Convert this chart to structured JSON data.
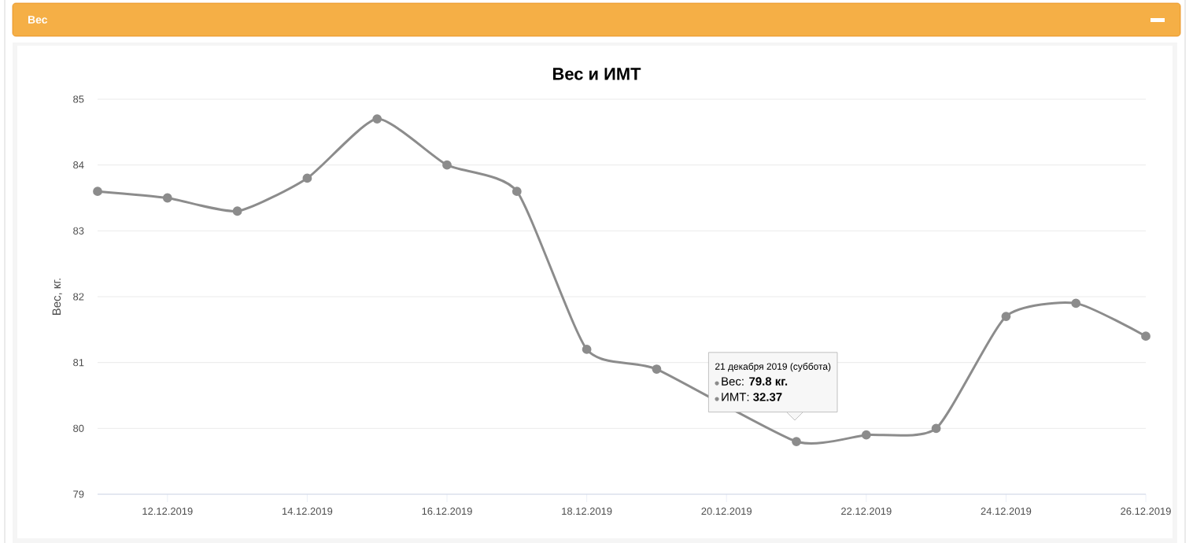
{
  "chart_data": {
    "type": "line",
    "title": "Вес",
    "subtitle": "Вес и ИМТ",
    "ylabel": "Вес, кг.",
    "annotations": [
      "21 декабря 2019 (суббота)",
      "Вес: **79.8 кг.**",
      "ИМТ: **32.37**"
    ],
    "x": [
      "2019-12-11",
      "2019-12-12",
      "2019-12-13",
      "2019-12-14",
      "2019-12-15",
      "2019-12-16",
      "2019-12-17",
      "2019-12-18",
      "2019-12-19",
      "2019-12-20",
      "2019-12-21",
      "2019-12-22",
      "2019-12-23",
      "2019-12-24",
      "2019-12-25",
      "2019-12-26"
    ],
    "series": [
      {
        "color": "#8c8c8c",
        "values": [
          83.6,
          83.5,
          83.3,
          83.8,
          84.7,
          84.0,
          83.6,
          81.2,
          80.9,
          null,
          79.8,
          79.9,
          80.0,
          81.7,
          81.9,
          81.4
        ]
      }
    ],
    "xlim": [
      "2019-12-11",
      "2019-12-26"
    ],
    "xticks": [
      {
        "value": "2019-12-12",
        "label": "12.12.2019"
      },
      {
        "value": "2019-12-14",
        "label": "14.12.2019"
      },
      {
        "value": "2019-12-16",
        "label": "16.12.2019"
      },
      {
        "value": "2019-12-18",
        "label": "18.12.2019"
      },
      {
        "value": "2019-12-20",
        "label": "20.12.2019"
      },
      {
        "value": "2019-12-22",
        "label": "22.12.2019"
      },
      {
        "value": "2019-12-24",
        "label": "24.12.2019"
      },
      {
        "value": "2019-12-26",
        "label": "26.12.2019"
      }
    ],
    "ylim": [
      79,
      85
    ],
    "yticks": [
      79,
      80,
      81,
      82,
      83,
      84,
      85
    ],
    "grid": "y",
    "marker": "circle",
    "line_style": "solid"
  }
}
